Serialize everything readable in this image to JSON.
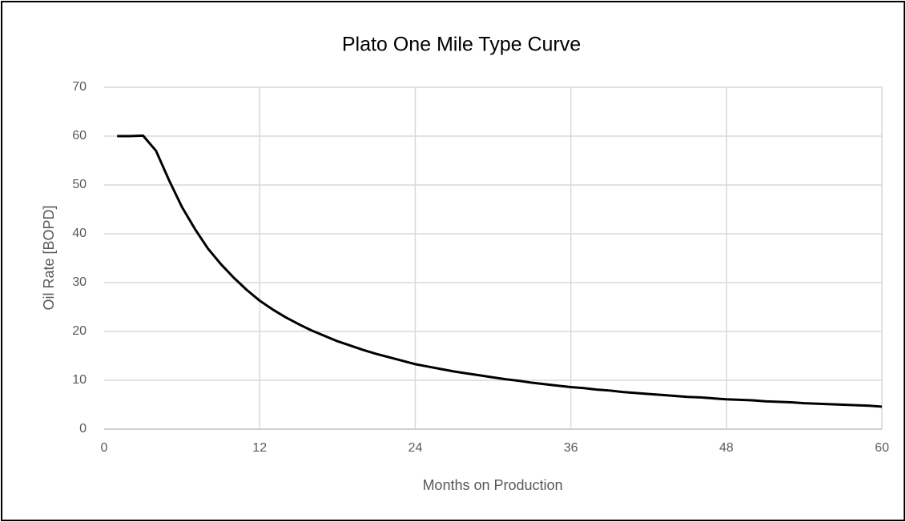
{
  "chart_data": {
    "type": "line",
    "title": "Plato One Mile Type Curve",
    "x_label": "Months on Production",
    "y_label": "Oil Rate [BOPD]",
    "x": [
      1,
      2,
      3,
      4,
      5,
      6,
      7,
      8,
      9,
      10,
      11,
      12,
      13,
      14,
      15,
      16,
      17,
      18,
      19,
      20,
      21,
      22,
      23,
      24,
      25,
      26,
      27,
      28,
      29,
      30,
      31,
      32,
      33,
      34,
      35,
      36,
      37,
      38,
      39,
      40,
      41,
      42,
      43,
      44,
      45,
      46,
      47,
      48,
      49,
      50,
      51,
      52,
      53,
      54,
      55,
      56,
      57,
      58,
      59,
      60
    ],
    "series": [
      {
        "name": "Oil Rate",
        "color": "#000000",
        "values": [
          60,
          60,
          60.1,
          57,
          51,
          45.5,
          41,
          37,
          33.8,
          31,
          28.5,
          26.3,
          24.5,
          22.9,
          21.5,
          20.2,
          19.1,
          18,
          17.1,
          16.2,
          15.4,
          14.7,
          14,
          13.3,
          12.8,
          12.3,
          11.8,
          11.4,
          11,
          10.6,
          10.2,
          9.9,
          9.5,
          9.2,
          8.9,
          8.6,
          8.4,
          8.1,
          7.9,
          7.6,
          7.4,
          7.2,
          7,
          6.8,
          6.6,
          6.5,
          6.3,
          6.1,
          6,
          5.9,
          5.7,
          5.6,
          5.5,
          5.3,
          5.2,
          5.1,
          5,
          4.9,
          4.8,
          4.6
        ]
      }
    ],
    "xlim": [
      0,
      60
    ],
    "xticks": [
      0,
      12,
      24,
      36,
      48,
      60
    ],
    "ylim": [
      0,
      70
    ],
    "yticks": [
      0,
      10,
      20,
      30,
      40,
      50,
      60,
      70
    ],
    "grid": true
  }
}
